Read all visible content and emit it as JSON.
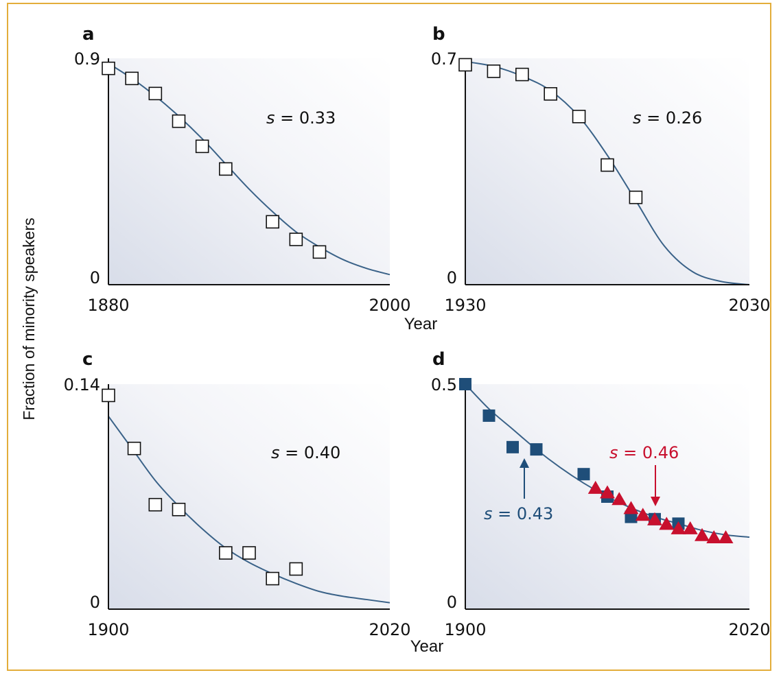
{
  "figure": {
    "ylabel": "Fraction of minority speakers",
    "xlabel_top": "Year",
    "xlabel_bottom": "Year"
  },
  "chart_data": [
    {
      "type": "scatter",
      "panel": "a",
      "xlim": [
        1880,
        2000
      ],
      "ylim": [
        0,
        0.9
      ],
      "x_ticks": [
        "1880",
        "2000"
      ],
      "y_ticks": [
        "0",
        "0.9"
      ],
      "annotations": [
        {
          "label": "s = 0.33",
          "color": "#111111"
        }
      ],
      "series": [
        {
          "marker": "open-square",
          "x": [
            1880,
            1890,
            1900,
            1910,
            1920,
            1930,
            1950,
            1960,
            1970
          ],
          "y": [
            0.86,
            0.82,
            0.76,
            0.65,
            0.55,
            0.46,
            0.25,
            0.18,
            0.13
          ]
        },
        {
          "marker": "line",
          "x": [
            1880,
            1890,
            1900,
            1910,
            1920,
            1930,
            1940,
            1950,
            1960,
            1970,
            1980,
            1990,
            2000
          ],
          "y": [
            0.88,
            0.82,
            0.75,
            0.67,
            0.58,
            0.48,
            0.38,
            0.29,
            0.21,
            0.15,
            0.1,
            0.065,
            0.04
          ]
        }
      ]
    },
    {
      "type": "scatter",
      "panel": "b",
      "xlim": [
        1930,
        2030
      ],
      "ylim": [
        0,
        0.7
      ],
      "x_ticks": [
        "1930",
        "2030"
      ],
      "y_ticks": [
        "0",
        "0.7"
      ],
      "annotations": [
        {
          "label": "s = 0.26",
          "color": "#111111"
        }
      ],
      "series": [
        {
          "marker": "open-square",
          "x": [
            1930,
            1940,
            1950,
            1960,
            1970,
            1980,
            1990
          ],
          "y": [
            0.68,
            0.66,
            0.65,
            0.59,
            0.52,
            0.37,
            0.27
          ]
        },
        {
          "marker": "line",
          "x": [
            1930,
            1940,
            1950,
            1960,
            1970,
            1980,
            1990,
            2000,
            2010,
            2020,
            2030
          ],
          "y": [
            0.69,
            0.675,
            0.645,
            0.6,
            0.52,
            0.4,
            0.26,
            0.12,
            0.04,
            0.01,
            0.0
          ]
        }
      ]
    },
    {
      "type": "scatter",
      "panel": "c",
      "xlim": [
        1900,
        2020
      ],
      "ylim": [
        0,
        0.14
      ],
      "x_ticks": [
        "1900",
        "2020"
      ],
      "y_ticks": [
        "0",
        "0.14"
      ],
      "annotations": [
        {
          "label": "s = 0.40",
          "color": "#111111"
        }
      ],
      "series": [
        {
          "marker": "open-square",
          "x": [
            1900,
            1911,
            1920,
            1930,
            1950,
            1960,
            1970,
            1980
          ],
          "y": [
            0.133,
            0.1,
            0.065,
            0.062,
            0.035,
            0.035,
            0.019,
            0.025
          ]
        },
        {
          "marker": "line",
          "x": [
            1900,
            1910,
            1920,
            1930,
            1940,
            1950,
            1960,
            1970,
            1980,
            1990,
            2000,
            2010,
            2020
          ],
          "y": [
            0.12,
            0.1,
            0.08,
            0.064,
            0.05,
            0.038,
            0.029,
            0.022,
            0.016,
            0.011,
            0.008,
            0.006,
            0.004
          ]
        }
      ]
    },
    {
      "type": "scatter",
      "panel": "d",
      "xlim": [
        1900,
        2020
      ],
      "ylim": [
        0,
        0.5
      ],
      "x_ticks": [
        "1900",
        "2020"
      ],
      "y_ticks": [
        "0",
        "0.5"
      ],
      "annotations": [
        {
          "label": "s = 0.43",
          "color": "#1f4e79"
        },
        {
          "label": "s = 0.46",
          "color": "#c8102e"
        }
      ],
      "series": [
        {
          "marker": "filled-square",
          "color": "#1f4e79",
          "x": [
            1900,
            1910,
            1920,
            1930,
            1950,
            1960,
            1970,
            1980,
            1990
          ],
          "y": [
            0.5,
            0.43,
            0.36,
            0.355,
            0.3,
            0.25,
            0.205,
            0.2,
            0.19
          ]
        },
        {
          "marker": "filled-triangle",
          "color": "#c8102e",
          "x": [
            1955,
            1960,
            1965,
            1970,
            1975,
            1980,
            1985,
            1990,
            1995,
            2000,
            2005,
            2010
          ],
          "y": [
            0.27,
            0.26,
            0.245,
            0.225,
            0.21,
            0.2,
            0.19,
            0.18,
            0.18,
            0.165,
            0.16,
            0.16
          ]
        },
        {
          "marker": "line",
          "color": "#1f4e79",
          "x": [
            1900,
            1910,
            1920,
            1930,
            1940,
            1950,
            1960,
            1970,
            1980,
            1990,
            2000,
            2010,
            2020
          ],
          "y": [
            0.5,
            0.445,
            0.4,
            0.355,
            0.315,
            0.28,
            0.25,
            0.225,
            0.205,
            0.19,
            0.175,
            0.165,
            0.16
          ]
        }
      ]
    }
  ]
}
